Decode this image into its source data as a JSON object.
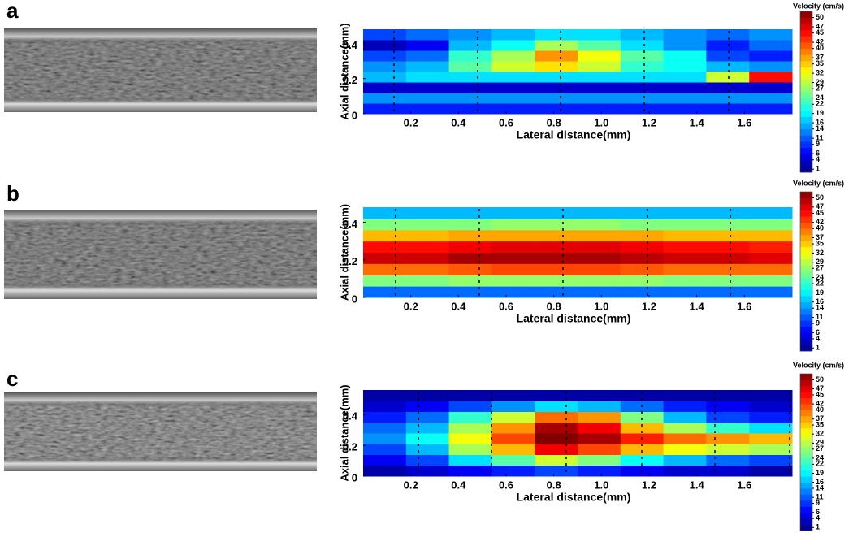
{
  "chart_data": [
    {
      "type": "heatmap",
      "label": "a",
      "ylabel": "Axial distance(mm)",
      "xlabel": "Lateral distance(mm)",
      "colorbar_title": "Velocity (cm/s)",
      "colormap": "jet",
      "xlim": [
        0,
        1.8
      ],
      "ylim": [
        0,
        0.48
      ],
      "xticks": [
        0.2,
        0.4,
        0.6,
        {
          "value": 0.8,
          "label": "0.8"
        },
        {
          "value": 1,
          "label": "1.0"
        },
        1.2,
        1.4,
        1.6
      ],
      "yticks": [
        0,
        0.2,
        0.4
      ],
      "clim": [
        0,
        52
      ],
      "cticks": [
        1,
        4,
        6,
        9,
        11,
        14,
        16,
        19,
        22,
        24,
        27,
        29,
        32,
        35,
        37,
        40,
        42,
        45,
        47,
        50
      ],
      "x": [
        0.09,
        0.27,
        0.45,
        0.63,
        0.81,
        0.99,
        1.17,
        1.35,
        1.53,
        1.71
      ],
      "y": [
        0.03,
        0.09,
        0.15,
        0.21,
        0.27,
        0.33,
        0.39,
        0.45
      ],
      "z": [
        [
          8,
          8,
          8,
          8,
          8,
          8,
          8,
          8,
          8,
          8
        ],
        [
          14,
          14,
          14,
          14,
          14,
          14,
          14,
          14,
          14,
          14
        ],
        [
          4,
          4,
          4,
          4,
          4,
          4,
          4,
          4,
          4,
          4
        ],
        [
          16,
          18,
          18,
          18,
          18,
          18,
          18,
          18,
          30,
          45
        ],
        [
          14,
          16,
          24,
          30,
          34,
          30,
          22,
          20,
          16,
          14
        ],
        [
          10,
          12,
          22,
          28,
          38,
          32,
          24,
          20,
          10,
          8
        ],
        [
          3,
          6,
          16,
          20,
          28,
          24,
          18,
          14,
          8,
          12
        ],
        [
          10,
          12,
          14,
          16,
          18,
          18,
          16,
          14,
          12,
          14
        ]
      ]
    },
    {
      "type": "heatmap",
      "label": "b",
      "ylabel": "Axial distance(mm)",
      "xlabel": "Lateral distance(mm)",
      "colorbar_title": "Velocity (cm/s)",
      "colormap": "jet",
      "xlim": [
        0,
        1.8
      ],
      "ylim": [
        0,
        0.48
      ],
      "xticks": [
        0.2,
        0.4,
        0.6,
        {
          "value": 0.8,
          "label": "0.8"
        },
        {
          "value": 1,
          "label": "1.0"
        },
        1.2,
        1.4,
        1.6
      ],
      "yticks": [
        0,
        0.2,
        0.4
      ],
      "clim": [
        0,
        52
      ],
      "cticks": [
        1,
        4,
        6,
        9,
        11,
        14,
        16,
        19,
        22,
        24,
        27,
        29,
        32,
        35,
        37,
        40,
        42,
        45,
        47,
        50
      ],
      "x": [
        0.09,
        0.27,
        0.45,
        0.63,
        0.81,
        0.99,
        1.17,
        1.35,
        1.53,
        1.71
      ],
      "y": [
        0.03,
        0.09,
        0.15,
        0.21,
        0.27,
        0.33,
        0.39,
        0.45
      ],
      "z": [
        [
          12,
          12,
          12,
          12,
          12,
          12,
          12,
          12,
          12,
          12
        ],
        [
          26,
          26,
          27,
          27,
          27,
          27,
          27,
          26,
          26,
          26
        ],
        [
          40,
          40,
          41,
          42,
          42,
          42,
          41,
          40,
          40,
          40
        ],
        [
          48,
          48,
          50,
          50,
          50,
          50,
          49,
          48,
          48,
          47
        ],
        [
          45,
          45,
          46,
          47,
          47,
          47,
          46,
          45,
          45,
          44
        ],
        [
          36,
          36,
          37,
          37,
          37,
          37,
          37,
          36,
          36,
          36
        ],
        [
          26,
          26,
          26,
          27,
          27,
          27,
          26,
          26,
          26,
          26
        ],
        [
          16,
          16,
          16,
          16,
          16,
          16,
          16,
          16,
          16,
          16
        ]
      ]
    },
    {
      "type": "heatmap",
      "label": "c",
      "ylabel": "Axial distance(mm)",
      "xlabel": "Lateral distance(mm)",
      "colorbar_title": "Velocity (cm/s)",
      "colormap": "jet",
      "xlim": [
        0,
        1.8
      ],
      "ylim": [
        0,
        0.56
      ],
      "xticks": [
        0.2,
        0.4,
        0.6,
        {
          "value": 0.8,
          "label": "0.8"
        },
        {
          "value": 1,
          "label": "1.0"
        },
        1.2,
        1.4,
        1.6
      ],
      "yticks": [
        0,
        0.2,
        0.4
      ],
      "clim": [
        0,
        52
      ],
      "cticks": [
        1,
        4,
        6,
        9,
        11,
        14,
        16,
        19,
        22,
        24,
        27,
        29,
        32,
        35,
        37,
        40,
        42,
        45,
        47,
        50
      ],
      "x": [
        0.09,
        0.27,
        0.45,
        0.63,
        0.81,
        0.99,
        1.17,
        1.35,
        1.53,
        1.71
      ],
      "y": [
        0.035,
        0.105,
        0.175,
        0.245,
        0.315,
        0.385,
        0.455,
        0.525
      ],
      "z": [
        [
          2,
          4,
          6,
          8,
          10,
          8,
          6,
          4,
          4,
          2
        ],
        [
          6,
          10,
          18,
          24,
          30,
          26,
          20,
          16,
          12,
          10
        ],
        [
          10,
          16,
          28,
          36,
          46,
          42,
          36,
          32,
          30,
          28
        ],
        [
          14,
          20,
          32,
          42,
          52,
          50,
          44,
          40,
          38,
          36
        ],
        [
          12,
          16,
          28,
          38,
          50,
          46,
          36,
          28,
          22,
          18
        ],
        [
          8,
          12,
          22,
          30,
          40,
          38,
          26,
          16,
          10,
          8
        ],
        [
          4,
          6,
          10,
          14,
          18,
          16,
          12,
          8,
          6,
          4
        ],
        [
          2,
          2,
          2,
          2,
          2,
          2,
          2,
          2,
          2,
          2
        ]
      ]
    }
  ]
}
